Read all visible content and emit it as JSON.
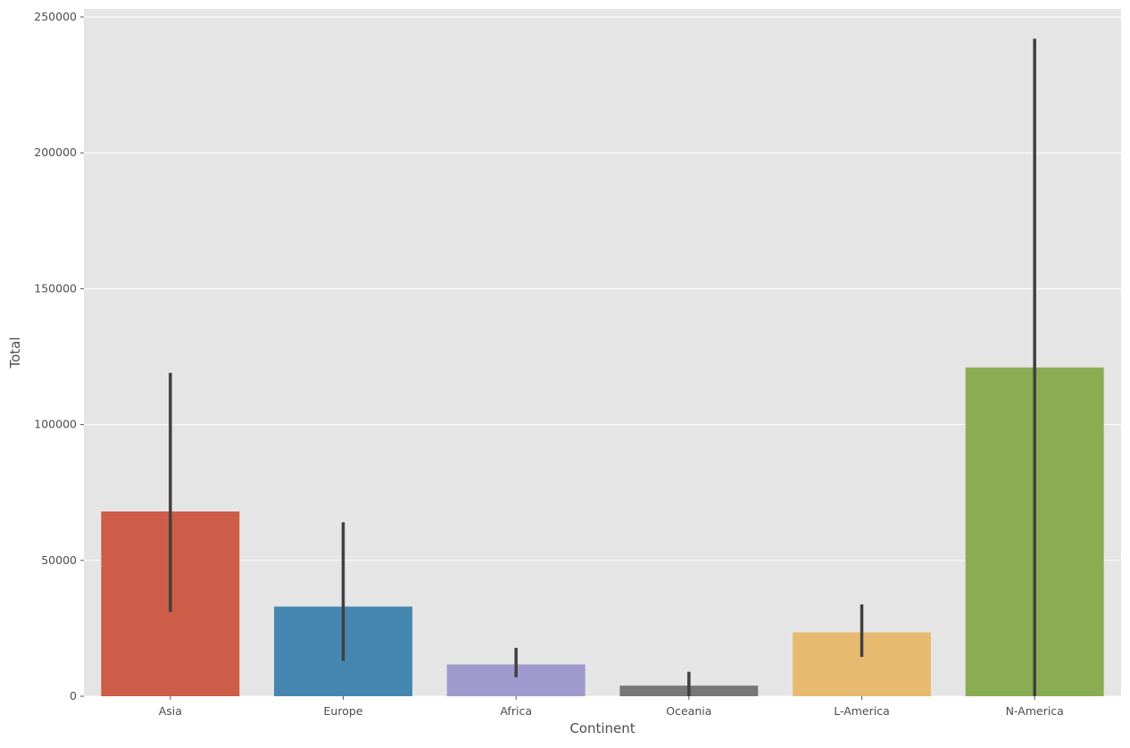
{
  "chart_data": {
    "type": "bar",
    "title": "",
    "xlabel": "Continent",
    "ylabel": "Total",
    "categories": [
      "Asia",
      "Europe",
      "Africa",
      "Oceania",
      "L-America",
      "N-America"
    ],
    "values": [
      68000,
      33000,
      11700,
      3900,
      23500,
      121000
    ],
    "error_low": [
      31000,
      13000,
      7000,
      0,
      14500,
      0
    ],
    "error_high": [
      119000,
      64000,
      17800,
      9000,
      33800,
      242000
    ],
    "colors": [
      "#cd5c48",
      "#4587b0",
      "#9f99cd",
      "#777777",
      "#e8ba70",
      "#8aac52"
    ],
    "error_bar_color": "#404040",
    "ylim": [
      0,
      250000
    ],
    "yticks": [
      0,
      50000,
      100000,
      150000,
      200000,
      250000
    ],
    "ytick_labels": [
      "0",
      "50000",
      "100000",
      "150000",
      "200000",
      "250000"
    ],
    "grid": true,
    "background": "#e5e5e5",
    "grid_color": "#ffffff"
  }
}
